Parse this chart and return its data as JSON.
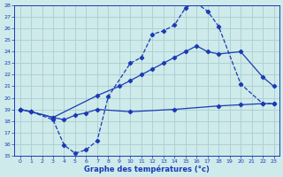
{
  "xlabel": "Graphe des températures (°c)",
  "bg_color": "#ceeaea",
  "grid_color": "#aacece",
  "line_color": "#1a3ab5",
  "xlim": [
    -0.5,
    23.5
  ],
  "ylim": [
    15,
    28
  ],
  "xticks": [
    0,
    1,
    2,
    3,
    4,
    5,
    6,
    7,
    8,
    9,
    10,
    11,
    12,
    13,
    14,
    15,
    16,
    17,
    18,
    19,
    20,
    21,
    22,
    23
  ],
  "yticks": [
    15,
    16,
    17,
    18,
    19,
    20,
    21,
    22,
    23,
    24,
    25,
    26,
    27,
    28
  ],
  "line1_x": [
    0,
    1,
    3,
    4,
    5,
    6,
    7,
    8,
    10,
    11,
    12,
    13,
    14,
    15,
    16,
    17,
    18,
    20,
    22,
    23
  ],
  "line1_y": [
    19.0,
    18.8,
    18.1,
    15.9,
    15.2,
    15.5,
    16.3,
    20.1,
    23.0,
    23.5,
    25.5,
    25.8,
    26.3,
    27.8,
    28.2,
    27.5,
    26.2,
    21.2,
    19.5,
    19.5
  ],
  "line2_x": [
    0,
    1,
    3,
    7,
    9,
    10,
    11,
    12,
    13,
    14,
    15,
    16,
    17,
    18,
    20,
    22,
    23
  ],
  "line2_y": [
    19.0,
    18.8,
    18.3,
    20.2,
    21.0,
    21.5,
    22.0,
    22.5,
    23.0,
    23.5,
    24.0,
    24.5,
    24.0,
    23.8,
    24.0,
    21.8,
    21.0
  ],
  "line3_x": [
    0,
    1,
    3,
    4,
    5,
    6,
    7,
    10,
    14,
    18,
    20,
    22,
    23
  ],
  "line3_y": [
    19.0,
    18.8,
    18.3,
    18.1,
    18.5,
    18.7,
    19.0,
    18.8,
    19.0,
    19.3,
    19.4,
    19.5,
    19.5
  ]
}
